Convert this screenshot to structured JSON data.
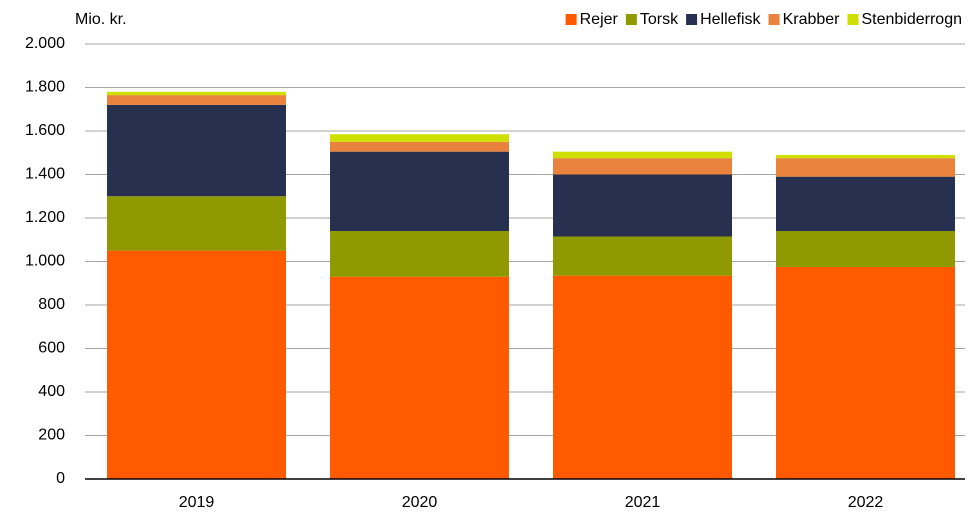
{
  "chart_data": {
    "type": "bar",
    "stacked": true,
    "y_label": "Mio. kr.",
    "categories": [
      "2019",
      "2020",
      "2021",
      "2022"
    ],
    "series": [
      {
        "name": "Rejer",
        "color": "#ff5a00",
        "values": [
          1050,
          930,
          935,
          975
        ]
      },
      {
        "name": "Torsk",
        "color": "#8f9a00",
        "values": [
          250,
          210,
          180,
          165
        ]
      },
      {
        "name": "Hellefisk",
        "color": "#283050",
        "values": [
          420,
          365,
          285,
          250
        ]
      },
      {
        "name": "Krabber",
        "color": "#e8823c",
        "values": [
          45,
          45,
          75,
          85
        ]
      },
      {
        "name": "Stenbiderrogn",
        "color": "#cfe000",
        "values": [
          15,
          35,
          30,
          15
        ]
      }
    ],
    "ylim": [
      0,
      2000
    ],
    "yticks": [
      0,
      200,
      400,
      600,
      800,
      {
        "value": 1000,
        "label": "1.000"
      },
      {
        "value": 1200,
        "label": "1.200"
      },
      {
        "value": 1400,
        "label": "1.400"
      },
      {
        "value": 1600,
        "label": "1.600"
      },
      {
        "value": 1800,
        "label": "1.800"
      },
      {
        "value": 2000,
        "label": "2.000"
      }
    ],
    "grid": true,
    "legend": "top-right"
  }
}
